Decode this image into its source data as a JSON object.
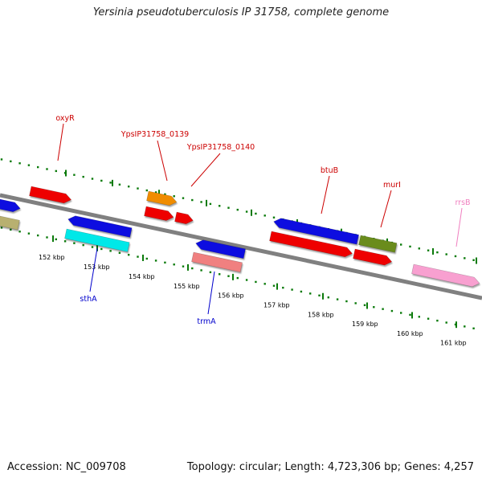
{
  "header": {
    "title": "Yersinia pseudotuberculosis IP 31758, complete genome"
  },
  "footer": {
    "accession": "Accession: NC_009708",
    "summary": "Topology: circular; Length: 4,723,306 bp; Genes: 4,257"
  },
  "colors": {
    "backbone": "#808080",
    "tick": "#0a7a0a",
    "red": "#ee0000",
    "blue": "#1010e0",
    "cyan": "#00e8e8",
    "orange": "#f08c00",
    "salmon": "#f08080",
    "olive": "#6b8c1e",
    "khaki": "#b8b070",
    "pink": "#f8a0d0",
    "label_red": "#cc0000",
    "label_blue": "#0000cc",
    "label_pink": "#f080c0"
  },
  "scale": {
    "labels": [
      "152 kbp",
      "153 kbp",
      "154 kbp",
      "155 kbp",
      "156 kbp",
      "157 kbp",
      "158 kbp",
      "159 kbp",
      "160 kbp",
      "161 kbp"
    ]
  },
  "gene_labels": [
    {
      "id": "oxyR",
      "text": "oxyR",
      "color": "label_red"
    },
    {
      "id": "ypsip-0139",
      "text": "YpsIP31758_0139",
      "color": "label_red"
    },
    {
      "id": "ypsip-0140",
      "text": "YpsIP31758_0140",
      "color": "label_red"
    },
    {
      "id": "btuB",
      "text": "btuB",
      "color": "label_red"
    },
    {
      "id": "murI",
      "text": "murI",
      "color": "label_red"
    },
    {
      "id": "rrsB",
      "text": "rrsB",
      "color": "label_pink"
    },
    {
      "id": "sthA",
      "text": "sthA",
      "color": "label_blue"
    },
    {
      "id": "trmA",
      "text": "trmA",
      "color": "label_blue"
    }
  ]
}
